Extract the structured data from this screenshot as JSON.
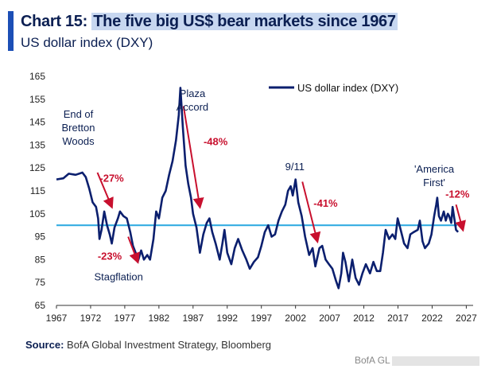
{
  "header": {
    "chart_number": "Chart 15:",
    "title": "The five big US$ bear markets since 1967",
    "subtitle": "US dollar index (DXY)"
  },
  "source": {
    "label": "Source:",
    "text": "BofA Global Investment Strategy, Bloomberg"
  },
  "watermark": "BofA GL",
  "chart_data": {
    "type": "line",
    "title": "The five big US$ bear markets since 1967",
    "ylabel": "US dollar index (DXY)",
    "xlim": [
      1967,
      2028
    ],
    "ylim": [
      65,
      165
    ],
    "x_ticks": [
      1967,
      1972,
      1977,
      1982,
      1987,
      1992,
      1997,
      2002,
      2007,
      2012,
      2017,
      2022,
      2027
    ],
    "y_ticks": [
      65,
      75,
      85,
      95,
      105,
      115,
      125,
      135,
      145,
      155,
      165
    ],
    "reference_line": {
      "value": 100,
      "color": "#29a8e0"
    },
    "legend": {
      "label": "US dollar index (DXY)",
      "position": "top-right"
    },
    "series": [
      {
        "name": "US dollar index (DXY)",
        "color": "#0b1f6e",
        "points": [
          [
            1967.0,
            120
          ],
          [
            1968.0,
            120.5
          ],
          [
            1968.8,
            122.5
          ],
          [
            1969.8,
            122
          ],
          [
            1970.8,
            123
          ],
          [
            1971.3,
            121
          ],
          [
            1971.8,
            116
          ],
          [
            1972.3,
            110
          ],
          [
            1972.8,
            108
          ],
          [
            1973.1,
            103
          ],
          [
            1973.3,
            94
          ],
          [
            1973.6,
            98
          ],
          [
            1974.0,
            106
          ],
          [
            1974.4,
            100
          ],
          [
            1974.8,
            96
          ],
          [
            1975.1,
            92
          ],
          [
            1975.5,
            99
          ],
          [
            1976.0,
            103
          ],
          [
            1976.3,
            106
          ],
          [
            1976.8,
            104
          ],
          [
            1977.3,
            103
          ],
          [
            1977.8,
            97
          ],
          [
            1978.2,
            91
          ],
          [
            1978.6,
            88
          ],
          [
            1978.9,
            84
          ],
          [
            1979.4,
            89
          ],
          [
            1979.8,
            85
          ],
          [
            1980.3,
            87
          ],
          [
            1980.7,
            85
          ],
          [
            1981.2,
            94
          ],
          [
            1981.6,
            106
          ],
          [
            1982.0,
            103
          ],
          [
            1982.5,
            112
          ],
          [
            1983.0,
            115
          ],
          [
            1983.5,
            122
          ],
          [
            1984.0,
            128
          ],
          [
            1984.5,
            137
          ],
          [
            1984.9,
            148
          ],
          [
            1985.15,
            160
          ],
          [
            1985.5,
            143
          ],
          [
            1985.9,
            126
          ],
          [
            1986.3,
            118
          ],
          [
            1986.7,
            112
          ],
          [
            1987.0,
            105
          ],
          [
            1987.5,
            99
          ],
          [
            1988.0,
            88
          ],
          [
            1988.5,
            96
          ],
          [
            1989.0,
            101
          ],
          [
            1989.4,
            103
          ],
          [
            1989.8,
            97
          ],
          [
            1990.3,
            92
          ],
          [
            1990.9,
            85
          ],
          [
            1991.3,
            92
          ],
          [
            1991.6,
            98
          ],
          [
            1992.0,
            88
          ],
          [
            1992.6,
            83
          ],
          [
            1993.1,
            90
          ],
          [
            1993.6,
            94
          ],
          [
            1994.2,
            89
          ],
          [
            1994.8,
            85
          ],
          [
            1995.3,
            81
          ],
          [
            1995.9,
            84
          ],
          [
            1996.5,
            86
          ],
          [
            1997.0,
            91
          ],
          [
            1997.5,
            97
          ],
          [
            1998.0,
            100
          ],
          [
            1998.5,
            95
          ],
          [
            1999.0,
            96
          ],
          [
            1999.5,
            102
          ],
          [
            2000.0,
            106
          ],
          [
            2000.5,
            109
          ],
          [
            2000.9,
            115
          ],
          [
            2001.3,
            117
          ],
          [
            2001.6,
            113
          ],
          [
            2002.0,
            120
          ],
          [
            2002.4,
            110
          ],
          [
            2002.9,
            104
          ],
          [
            2003.4,
            95
          ],
          [
            2004.0,
            87
          ],
          [
            2004.5,
            90
          ],
          [
            2004.9,
            82
          ],
          [
            2005.5,
            90
          ],
          [
            2005.9,
            91
          ],
          [
            2006.4,
            85
          ],
          [
            2006.9,
            83
          ],
          [
            2007.4,
            81
          ],
          [
            2007.9,
            76
          ],
          [
            2008.3,
            72.5
          ],
          [
            2008.7,
            79
          ],
          [
            2008.95,
            88
          ],
          [
            2009.3,
            84
          ],
          [
            2009.8,
            75.5
          ],
          [
            2010.3,
            85
          ],
          [
            2010.8,
            77
          ],
          [
            2011.3,
            74
          ],
          [
            2011.8,
            79
          ],
          [
            2012.3,
            83
          ],
          [
            2012.9,
            79
          ],
          [
            2013.4,
            84
          ],
          [
            2013.9,
            80
          ],
          [
            2014.4,
            80
          ],
          [
            2014.8,
            88
          ],
          [
            2015.2,
            98
          ],
          [
            2015.7,
            94
          ],
          [
            2016.2,
            96
          ],
          [
            2016.6,
            94
          ],
          [
            2016.95,
            103
          ],
          [
            2017.4,
            98
          ],
          [
            2017.9,
            92
          ],
          [
            2018.4,
            90
          ],
          [
            2018.8,
            96
          ],
          [
            2019.3,
            97
          ],
          [
            2019.9,
            98
          ],
          [
            2020.2,
            102
          ],
          [
            2020.6,
            93
          ],
          [
            2020.95,
            90
          ],
          [
            2021.5,
            92
          ],
          [
            2021.9,
            96
          ],
          [
            2022.3,
            104
          ],
          [
            2022.6,
            109
          ],
          [
            2022.75,
            112
          ],
          [
            2023.0,
            104
          ],
          [
            2023.3,
            102
          ],
          [
            2023.7,
            106
          ],
          [
            2024.0,
            102
          ],
          [
            2024.3,
            105
          ],
          [
            2024.5,
            104
          ],
          [
            2024.8,
            101
          ],
          [
            2025.0,
            108
          ],
          [
            2025.2,
            104
          ],
          [
            2025.5,
            98
          ],
          [
            2025.8,
            97
          ]
        ]
      }
    ],
    "annotations": [
      {
        "label_lines": [
          "End of",
          "Bretton",
          "Woods"
        ],
        "at": [
          1970.2,
          147
        ],
        "color": "#0b1f52",
        "anchor": "middle"
      },
      {
        "label_lines": [
          "Stagflation"
        ],
        "at": [
          1976.1,
          76
        ],
        "color": "#0b1f52",
        "anchor": "middle"
      },
      {
        "label_lines": [
          "Plaza",
          "Accord"
        ],
        "at": [
          1986.9,
          156
        ],
        "color": "#0b1f52",
        "anchor": "middle"
      },
      {
        "label_lines": [
          "9/11"
        ],
        "at": [
          2001.9,
          124
        ],
        "color": "#0b1f52",
        "anchor": "middle"
      },
      {
        "label_lines": [
          "'America",
          "First'"
        ],
        "at": [
          2022.3,
          123
        ],
        "color": "#0b1f52",
        "anchor": "middle"
      },
      {
        "label_lines": [
          "-27%"
        ],
        "at": [
          1975.1,
          119
        ],
        "color": "#c8102e",
        "anchor": "middle",
        "bold": true
      },
      {
        "label_lines": [
          "-23%"
        ],
        "at": [
          1974.8,
          85
        ],
        "color": "#c8102e",
        "anchor": "middle",
        "bold": true
      },
      {
        "label_lines": [
          "-48%"
        ],
        "at": [
          1990.3,
          135
        ],
        "color": "#c8102e",
        "anchor": "middle",
        "bold": true
      },
      {
        "label_lines": [
          "-41%"
        ],
        "at": [
          2006.4,
          108
        ],
        "color": "#c8102e",
        "anchor": "middle",
        "bold": true
      },
      {
        "label_lines": [
          "-12%"
        ],
        "at": [
          2025.7,
          112
        ],
        "color": "#c8102e",
        "anchor": "middle",
        "bold": true
      }
    ],
    "arrows": [
      {
        "from": [
          1973.0,
          123
        ],
        "to": [
          1975.1,
          108
        ],
        "color": "#c8102e"
      },
      {
        "from": [
          1977.5,
          95
        ],
        "to": [
          1978.9,
          84
        ],
        "color": "#c8102e"
      },
      {
        "from": [
          1985.6,
          152
        ],
        "to": [
          1988.0,
          108
        ],
        "color": "#c8102e"
      },
      {
        "from": [
          2003.0,
          119
        ],
        "to": [
          2005.2,
          93
        ],
        "color": "#c8102e"
      },
      {
        "from": [
          2025.5,
          109
        ],
        "to": [
          2026.5,
          98
        ],
        "color": "#c8102e"
      }
    ]
  }
}
